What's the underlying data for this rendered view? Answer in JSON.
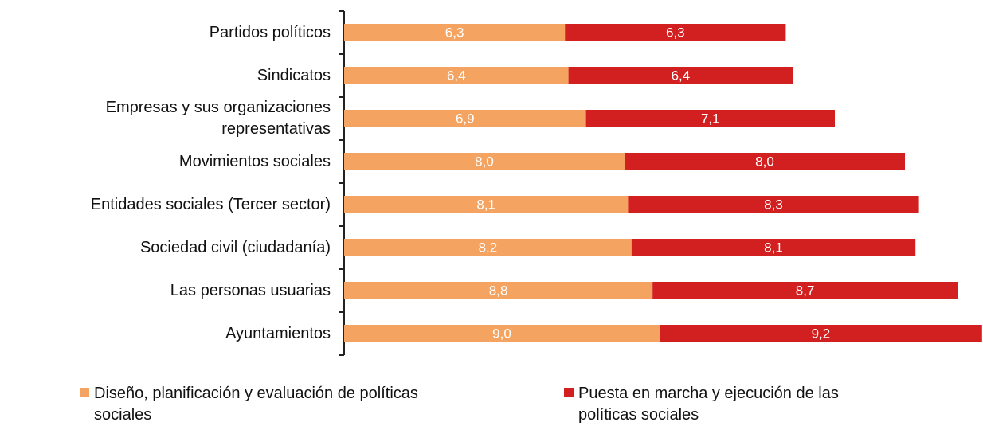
{
  "chart_data": {
    "type": "stacked_bar_horizontal",
    "categories": [
      "Partidos políticos",
      "Sindicatos",
      "Empresas y sus organizaciones representativas",
      "Movimientos sociales",
      "Entidades sociales (Tercer sector)",
      "Sociedad civil (ciudadanía)",
      "Las personas usuarias",
      "Ayuntamientos"
    ],
    "series": [
      {
        "name": "Diseño, planificación y evaluación de políticas sociales",
        "color": "#f4a460",
        "values": [
          6.3,
          6.4,
          6.9,
          8.0,
          8.1,
          8.2,
          8.8,
          9.0
        ],
        "value_labels": [
          "6,3",
          "6,4",
          "6,9",
          "8,0",
          "8,1",
          "8,2",
          "8,8",
          "9,0"
        ]
      },
      {
        "name": "Puesta en marcha y ejecución de las políticas sociales",
        "color": "#d21f1f",
        "values": [
          6.3,
          6.4,
          7.1,
          8.0,
          8.3,
          8.1,
          8.7,
          9.2
        ],
        "value_labels": [
          "6,3",
          "6,4",
          "7,1",
          "8,0",
          "8,3",
          "8,1",
          "8,7",
          "9,2"
        ]
      }
    ]
  }
}
